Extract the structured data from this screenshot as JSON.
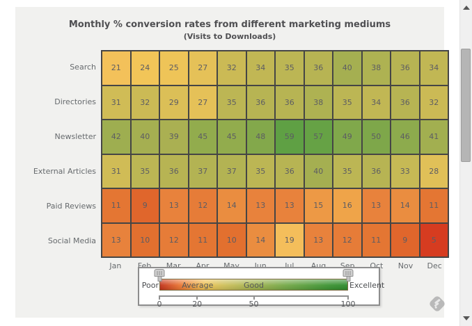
{
  "chart_data": {
    "type": "heatmap",
    "title": "Monthly % conversion rates from different marketing mediums",
    "subtitle": "(Visits to Downloads)",
    "columns": [
      "Jan",
      "Feb",
      "Mar",
      "Apr",
      "May",
      "Jun",
      "Jul",
      "Aug",
      "Sep",
      "Oct",
      "Nov",
      "Dec"
    ],
    "rows": [
      "Search",
      "Directories",
      "Newsletter",
      "External Articles",
      "Paid Reviews",
      "Social Media"
    ],
    "series": [
      {
        "name": "Search",
        "values": [
          21,
          24,
          25,
          27,
          32,
          34,
          35,
          36,
          40,
          38,
          36,
          34
        ]
      },
      {
        "name": "Directories",
        "values": [
          31,
          32,
          29,
          27,
          35,
          36,
          36,
          38,
          35,
          34,
          36,
          32
        ]
      },
      {
        "name": "Newsletter",
        "values": [
          42,
          40,
          39,
          45,
          45,
          48,
          59,
          57,
          49,
          50,
          46,
          41
        ]
      },
      {
        "name": "External Articles",
        "values": [
          31,
          35,
          36,
          37,
          37,
          35,
          36,
          40,
          35,
          36,
          33,
          28
        ]
      },
      {
        "name": "Paid Reviews",
        "values": [
          11,
          9,
          13,
          12,
          14,
          13,
          13,
          15,
          16,
          13,
          14,
          11
        ]
      },
      {
        "name": "Social Media",
        "values": [
          13,
          10,
          12,
          11,
          10,
          14,
          19,
          13,
          12,
          11,
          9,
          5
        ]
      }
    ],
    "value_range": [
      0,
      100
    ],
    "grid_border_color": "#454545",
    "color_scale_stops": [
      [
        0,
        "#cb2f17"
      ],
      [
        5,
        "#d63c20"
      ],
      [
        10,
        "#e2702f"
      ],
      [
        13,
        "#e8823c"
      ],
      [
        16,
        "#efa449"
      ],
      [
        19,
        "#f4be5b"
      ],
      [
        24,
        "#f2c558"
      ],
      [
        28,
        "#e0c058"
      ],
      [
        32,
        "#cbba55"
      ],
      [
        36,
        "#b7b453"
      ],
      [
        40,
        "#a5af51"
      ],
      [
        44,
        "#97ad4e"
      ],
      [
        48,
        "#83a84b"
      ],
      [
        52,
        "#78a649"
      ],
      [
        59,
        "#5fa044"
      ],
      [
        100,
        "#2e8b2d"
      ]
    ],
    "legend": {
      "left_label": "Poor",
      "right_label": "Excellent",
      "bar_labels": [
        {
          "text": "Average",
          "at": 20
        },
        {
          "text": "Good",
          "at": 50
        }
      ],
      "ticks": [
        0,
        20,
        50,
        100
      ],
      "gradient": [
        "#c2331c",
        "#e87132",
        "#f0c355",
        "#a3b351",
        "#5fa144",
        "#2f8c2d"
      ]
    }
  },
  "icons": {
    "watermark": "fusioncharts-logo",
    "scroll_up": "up-triangle",
    "scroll_down": "down-triangle"
  }
}
